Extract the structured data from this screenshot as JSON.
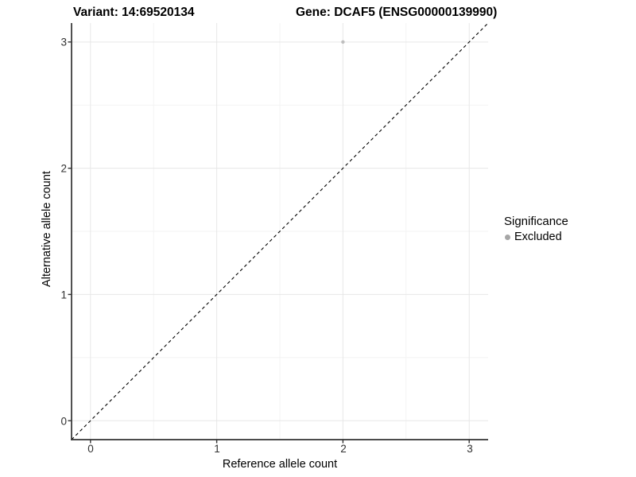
{
  "titles": {
    "variant": "Variant: 14:69520134",
    "gene": "Gene: DCAF5 (ENSG00000139990)"
  },
  "axes": {
    "x": {
      "label": "Reference allele count",
      "ticks": [
        "0",
        "1",
        "2",
        "3"
      ]
    },
    "y": {
      "label": "Alternative allele count",
      "ticks": [
        "0",
        "1",
        "2",
        "3"
      ]
    }
  },
  "legend": {
    "title": "Significance",
    "items": [
      {
        "label": "Excluded",
        "swatch_color": "#a6a6a6"
      }
    ]
  },
  "colors": {
    "background": "#ffffff",
    "axis_line": "#333333",
    "tick_mark": "#333333",
    "tick_label": "#303030",
    "grid_major": "#e7e7e7",
    "grid_minor": "#f3f3f3",
    "point": "#bebebe",
    "reference_line": "#000000"
  },
  "chart_data": {
    "type": "scatter",
    "title": "Variant: 14:69520134 — Gene: DCAF5 (ENSG00000139990)",
    "xlabel": "Reference allele count",
    "ylabel": "Alternative allele count",
    "xlim": [
      -0.15,
      3.15
    ],
    "ylim": [
      -0.15,
      3.15
    ],
    "xticks": [
      0,
      1,
      2,
      3
    ],
    "yticks": [
      0,
      1,
      2,
      3
    ],
    "minor_xticks": [
      0.5,
      1.5,
      2.5
    ],
    "minor_yticks": [
      0.5,
      1.5,
      2.5
    ],
    "grid": "major and minor, light gray on white",
    "legend_position": "right",
    "series": [
      {
        "name": "Excluded",
        "color": "#bebebe",
        "point_radius": 2.2,
        "points": [
          {
            "x": 2,
            "y": 3
          }
        ]
      }
    ],
    "reference_line": {
      "kind": "identity y=x",
      "style": "dashed",
      "color": "#000000"
    }
  }
}
